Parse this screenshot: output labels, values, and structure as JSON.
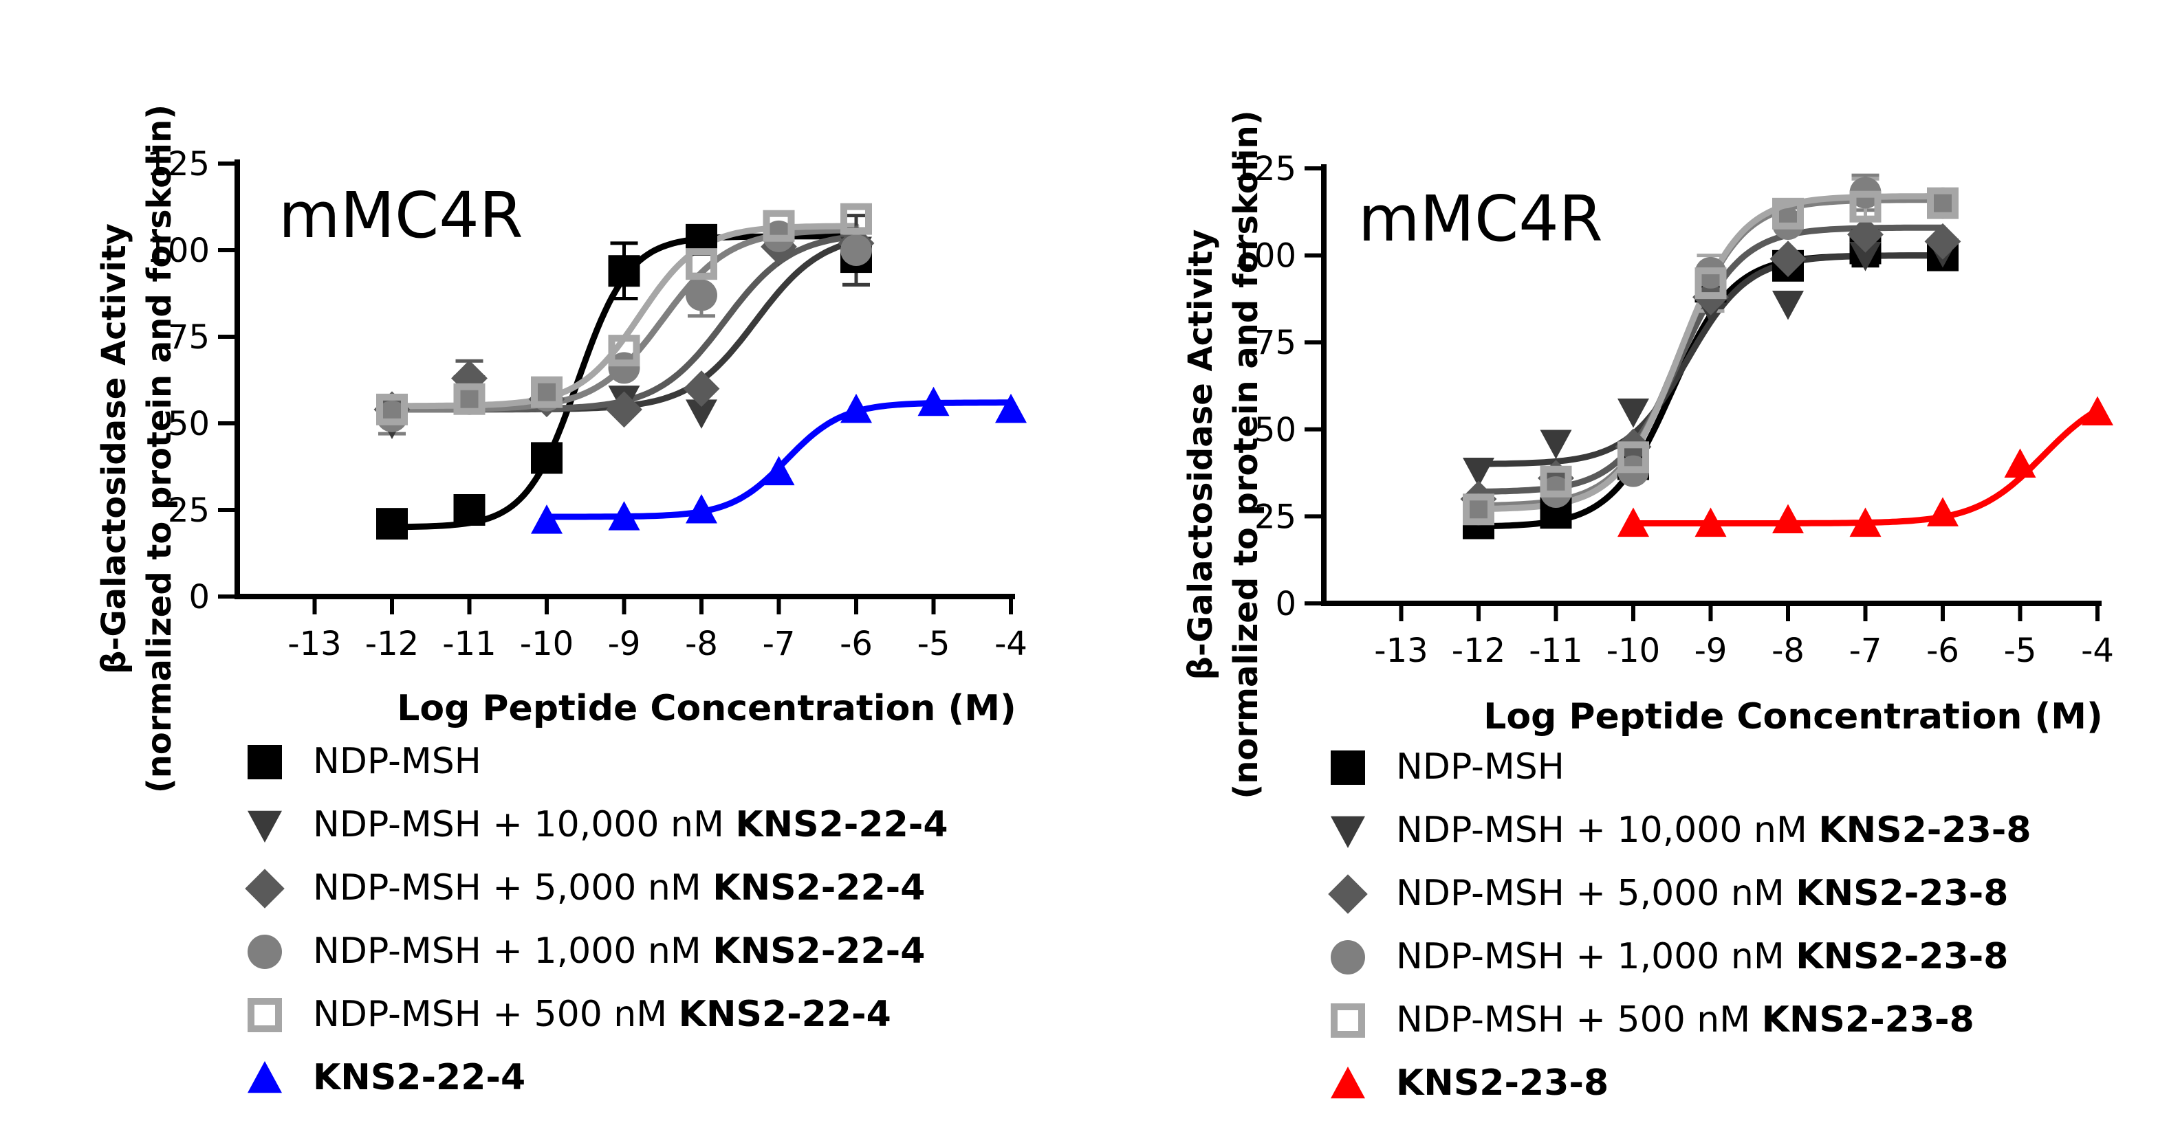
{
  "chart_data": [
    {
      "type": "scatter",
      "annotation": "mMC4R",
      "ylabel_line1": "β-Galactosidase Activity",
      "ylabel_line2": "(normalized to protein and forskolin)",
      "xlabel": "Log Peptide Concentration (M)",
      "xlim": [
        -14,
        -4
      ],
      "ylim": [
        0,
        125
      ],
      "xticks": [
        -13,
        -12,
        -11,
        -10,
        -9,
        -8,
        -7,
        -6,
        -5,
        -4
      ],
      "yticks": [
        0,
        25,
        50,
        75,
        100,
        125
      ],
      "series": [
        {
          "name": "NDP-MSH",
          "agent": "",
          "marker": "square",
          "color": "#000000",
          "x": [
            -12,
            -11,
            -10,
            -9,
            -8,
            -6
          ],
          "y": [
            21,
            25,
            40,
            94,
            103,
            98
          ],
          "err": [
            0,
            0,
            0,
            8,
            0,
            8
          ],
          "fit": {
            "bottom": 20,
            "top": 104,
            "logec50": -9.6,
            "hill": 1.3,
            "from": -12,
            "to": -6
          }
        },
        {
          "name": "NDP-MSH + 10,000 nM ",
          "agent": "KNS2-22-4",
          "marker": "triangle-down",
          "color": "#3a3a3a",
          "x": [
            -12,
            -11,
            -10,
            -9,
            -8,
            -7,
            -6
          ],
          "y": [
            50,
            60,
            57,
            57,
            53,
            100,
            100
          ],
          "err": [
            0,
            0,
            0,
            0,
            0,
            0,
            10
          ],
          "fit": {
            "bottom": 54,
            "top": 105,
            "logec50": -7.3,
            "hill": 1.0,
            "from": -12,
            "to": -6
          }
        },
        {
          "name": "NDP-MSH + 5,000 nM ",
          "agent": "KNS2-22-4",
          "marker": "diamond",
          "color": "#5a5a5a",
          "x": [
            -12,
            -11,
            -10,
            -9,
            -8,
            -7,
            -6
          ],
          "y": [
            54,
            63,
            57,
            54,
            60,
            101,
            102
          ],
          "err": [
            0,
            5,
            0,
            0,
            0,
            0,
            0
          ],
          "fit": {
            "bottom": 54,
            "top": 105,
            "logec50": -7.7,
            "hill": 1.0,
            "from": -12,
            "to": -6
          }
        },
        {
          "name": "NDP-MSH + 1,000 nM ",
          "agent": "KNS2-22-4",
          "marker": "circle",
          "color": "#7f7f7f",
          "x": [
            -12,
            -11,
            -10,
            -9,
            -8,
            -7,
            -6
          ],
          "y": [
            52,
            57,
            58,
            66,
            87,
            104,
            100
          ],
          "err": [
            5,
            0,
            0,
            0,
            6,
            0,
            0
          ],
          "fit": {
            "bottom": 54,
            "top": 106,
            "logec50": -8.5,
            "hill": 1.0,
            "from": -12,
            "to": -6
          }
        },
        {
          "name": "NDP-MSH + 500 nM ",
          "agent": "KNS2-22-4",
          "marker": "square-open",
          "color": "#a6a6a6",
          "x": [
            -12,
            -11,
            -10,
            -9,
            -8,
            -7,
            -6
          ],
          "y": [
            54,
            57,
            59,
            71,
            96,
            107,
            109
          ],
          "err": [
            0,
            0,
            0,
            0,
            0,
            0,
            0
          ],
          "fit": {
            "bottom": 55,
            "top": 107,
            "logec50": -8.8,
            "hill": 1.1,
            "from": -12,
            "to": -6
          }
        },
        {
          "name": "",
          "agent": "KNS2-22-4",
          "marker": "triangle-up",
          "color": "#0000ff",
          "x": [
            -10,
            -9,
            -8,
            -7,
            -6,
            -5,
            -4
          ],
          "y": [
            22,
            23,
            25,
            36,
            54,
            56,
            54
          ],
          "err": [
            0,
            0,
            0,
            0,
            0,
            0,
            0
          ],
          "fit": {
            "bottom": 23,
            "top": 56,
            "logec50": -6.9,
            "hill": 1.2,
            "from": -10,
            "to": -4
          }
        }
      ]
    },
    {
      "type": "scatter",
      "annotation": "mMC4R",
      "ylabel_line1": "β-Galactosidase Activity",
      "ylabel_line2": "(normalized to protein and forskolin)",
      "xlabel": "Log Peptide Concentration (M)",
      "xlim": [
        -14,
        -4
      ],
      "ylim": [
        0,
        125
      ],
      "xticks": [
        -13,
        -12,
        -11,
        -10,
        -9,
        -8,
        -7,
        -6,
        -5,
        -4
      ],
      "yticks": [
        0,
        25,
        50,
        75,
        100,
        125
      ],
      "series": [
        {
          "name": "NDP-MSH",
          "agent": "",
          "marker": "square",
          "color": "#000000",
          "x": [
            -12,
            -11,
            -10,
            -9,
            -8,
            -7,
            -6
          ],
          "y": [
            23,
            26,
            40,
            91,
            97,
            102,
            100
          ],
          "err": [
            0,
            0,
            0,
            0,
            0,
            5,
            0
          ],
          "fit": {
            "bottom": 22,
            "top": 100,
            "logec50": -9.5,
            "hill": 1.1,
            "from": -12,
            "to": -6
          }
        },
        {
          "name": "NDP-MSH + 10,000 nM ",
          "agent": "KNS2-23-8",
          "marker": "triangle-down",
          "color": "#3a3a3a",
          "x": [
            -12,
            -11,
            -10,
            -9,
            -8,
            -7,
            -6
          ],
          "y": [
            38,
            46,
            55,
            85,
            86,
            100,
            101
          ],
          "err": [
            0,
            0,
            0,
            0,
            0,
            0,
            0
          ],
          "fit": {
            "bottom": 40,
            "top": 100,
            "logec50": -9.3,
            "hill": 1.1,
            "from": -12,
            "to": -6
          }
        },
        {
          "name": "NDP-MSH + 5,000 nM ",
          "agent": "KNS2-23-8",
          "marker": "diamond",
          "color": "#5a5a5a",
          "x": [
            -12,
            -11,
            -10,
            -9,
            -8,
            -7,
            -6
          ],
          "y": [
            30,
            36,
            45,
            88,
            99,
            106,
            104
          ],
          "err": [
            0,
            0,
            0,
            0,
            0,
            0,
            0
          ],
          "fit": {
            "bottom": 32,
            "top": 108,
            "logec50": -9.4,
            "hill": 1.1,
            "from": -12,
            "to": -6
          }
        },
        {
          "name": "NDP-MSH + 1,000 nM ",
          "agent": "KNS2-23-8",
          "marker": "circle",
          "color": "#7f7f7f",
          "x": [
            -12,
            -11,
            -10,
            -9,
            -8,
            -7,
            -6
          ],
          "y": [
            27,
            32,
            38,
            95,
            109,
            118,
            115
          ],
          "err": [
            0,
            0,
            0,
            0,
            0,
            5,
            0
          ],
          "fit": {
            "bottom": 28,
            "top": 116,
            "logec50": -9.4,
            "hill": 1.1,
            "from": -12,
            "to": -6
          }
        },
        {
          "name": "NDP-MSH + 500 nM ",
          "agent": "KNS2-23-8",
          "marker": "square-open",
          "color": "#a6a6a6",
          "x": [
            -12,
            -11,
            -10,
            -9,
            -8,
            -7,
            -6
          ],
          "y": [
            27,
            35,
            42,
            92,
            112,
            114,
            115
          ],
          "err": [
            0,
            0,
            0,
            8,
            0,
            8,
            0
          ],
          "fit": {
            "bottom": 27,
            "top": 117,
            "logec50": -9.4,
            "hill": 1.1,
            "from": -12,
            "to": -6
          }
        },
        {
          "name": "",
          "agent": "KNS2-23-8",
          "marker": "triangle-up",
          "color": "#ff0000",
          "x": [
            -10,
            -9,
            -8,
            -7,
            -6,
            -5,
            -4
          ],
          "y": [
            23,
            23,
            24,
            23,
            26,
            40,
            55
          ],
          "err": [
            0,
            0,
            0,
            0,
            0,
            0,
            0
          ],
          "fit": {
            "bottom": 23,
            "top": 62,
            "logec50": -4.7,
            "hill": 1.0,
            "from": -10,
            "to": -4
          }
        }
      ]
    }
  ]
}
